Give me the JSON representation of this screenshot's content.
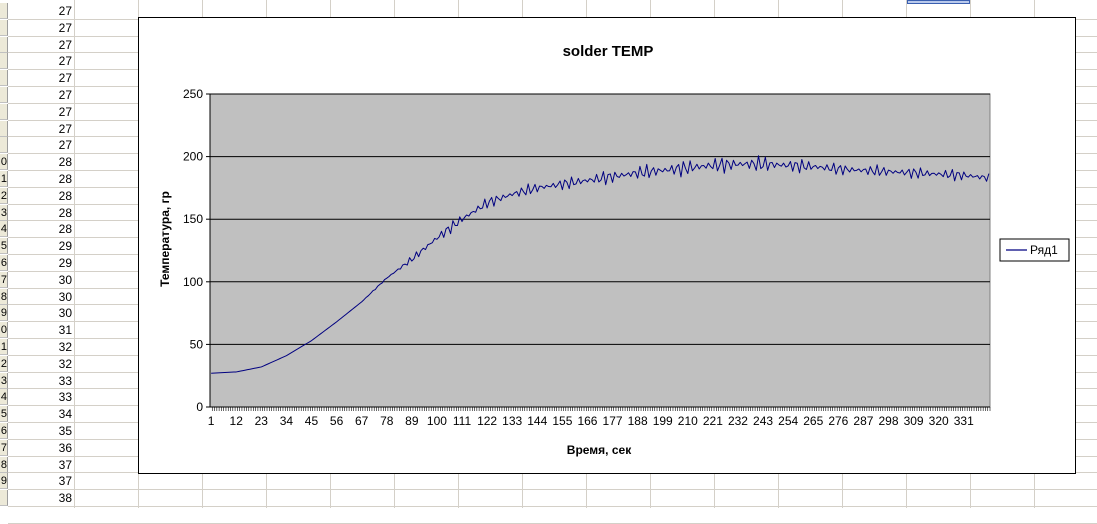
{
  "sheet": {
    "column_values": [
      "27",
      "27",
      "27",
      "27",
      "27",
      "27",
      "27",
      "27",
      "27",
      "28",
      "28",
      "28",
      "28",
      "28",
      "29",
      "29",
      "30",
      "30",
      "30",
      "31",
      "32",
      "32",
      "33",
      "33",
      "34",
      "35",
      "36",
      "37",
      "37",
      "38"
    ],
    "row_numbers_visible": [
      "",
      "",
      "",
      "",
      "",
      "",
      "",
      "",
      "",
      "0",
      "1",
      "2",
      "3",
      "4",
      "5",
      "6",
      "7",
      "8",
      "9",
      "0",
      "1",
      "2",
      "3",
      "4",
      "5",
      "6",
      "7",
      "8",
      "9",
      ""
    ]
  },
  "chart_data": {
    "type": "line",
    "title": "solder TEMP",
    "xlabel": "Время, сек",
    "ylabel": "Температура, гр",
    "ylim": [
      0,
      250
    ],
    "yticks": [
      0,
      50,
      100,
      150,
      200,
      250
    ],
    "xticks": [
      1,
      12,
      23,
      34,
      45,
      56,
      67,
      78,
      89,
      100,
      111,
      122,
      133,
      144,
      155,
      166,
      177,
      188,
      199,
      210,
      221,
      232,
      243,
      254,
      265,
      276,
      287,
      298,
      309,
      320,
      331
    ],
    "x_count": 342,
    "legend_position": "right",
    "grid": "horizontal",
    "plot_background": "#c0c0c0",
    "line_color": "#000080",
    "series": [
      {
        "name": "Ряд1",
        "x": [
          1,
          12,
          23,
          34,
          45,
          56,
          67,
          78,
          89,
          100,
          111,
          122,
          133,
          144,
          155,
          166,
          177,
          188,
          199,
          210,
          221,
          232,
          243,
          254,
          265,
          276,
          287,
          298,
          309,
          320,
          331,
          342
        ],
        "values": [
          27,
          28,
          32,
          41,
          53,
          68,
          84,
          103,
          118,
          135,
          150,
          163,
          170,
          175,
          178,
          181,
          184,
          187,
          189,
          191,
          193,
          194,
          194,
          193,
          192,
          190,
          189,
          188,
          187,
          186,
          185,
          183
        ],
        "noise": [
          0,
          0,
          0,
          0,
          0,
          0,
          0,
          1,
          3,
          5,
          5,
          5,
          5,
          5,
          5,
          6,
          6,
          6,
          7,
          7,
          7,
          7,
          7,
          6,
          6,
          5,
          5,
          5,
          5,
          5,
          5,
          4
        ]
      }
    ]
  }
}
